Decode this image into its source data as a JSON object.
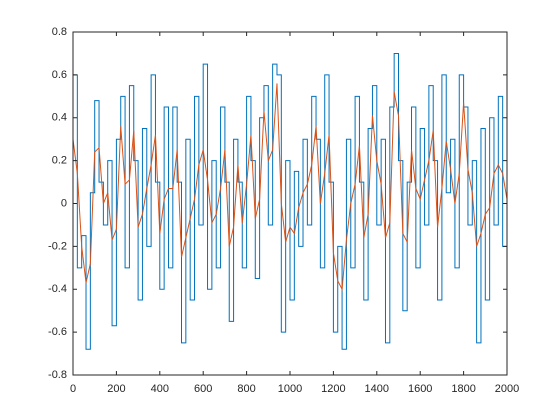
{
  "chart_data": {
    "type": "line",
    "x": [
      0,
      20,
      40,
      60,
      80,
      100,
      120,
      140,
      160,
      180,
      200,
      220,
      240,
      260,
      280,
      300,
      320,
      340,
      360,
      380,
      400,
      420,
      440,
      460,
      480,
      500,
      520,
      540,
      560,
      580,
      600,
      620,
      640,
      660,
      680,
      700,
      720,
      740,
      760,
      780,
      800,
      820,
      840,
      860,
      880,
      900,
      920,
      940,
      960,
      980,
      1000,
      1020,
      1040,
      1060,
      1080,
      1100,
      1120,
      1140,
      1160,
      1180,
      1200,
      1220,
      1240,
      1260,
      1280,
      1300,
      1320,
      1340,
      1360,
      1380,
      1400,
      1420,
      1440,
      1460,
      1480,
      1500,
      1520,
      1540,
      1560,
      1580,
      1600,
      1620,
      1640,
      1660,
      1680,
      1700,
      1720,
      1740,
      1760,
      1780,
      1800,
      1820,
      1840,
      1860,
      1880,
      1900,
      1920,
      1940,
      1960,
      1980,
      2000
    ],
    "series": [
      {
        "color": "#0072bd",
        "drawstyle": "steps-post",
        "values": [
          0.6,
          -0.3,
          -0.15,
          -0.68,
          0.05,
          0.48,
          0.1,
          -0.1,
          0.2,
          -0.57,
          0.3,
          0.5,
          -0.3,
          0.55,
          0.2,
          -0.45,
          0.35,
          -0.2,
          0.6,
          0.1,
          -0.4,
          0.45,
          -0.3,
          0.45,
          0.1,
          -0.65,
          0.3,
          -0.45,
          0.5,
          -0.1,
          0.65,
          -0.4,
          0.2,
          -0.3,
          0.45,
          0.1,
          -0.55,
          0.3,
          0.1,
          -0.3,
          0.5,
          0.2,
          -0.35,
          0.4,
          0.55,
          -0.1,
          0.65,
          0.6,
          -0.6,
          0.2,
          -0.45,
          0.15,
          -0.2,
          0.3,
          -0.1,
          0.5,
          0.3,
          -0.3,
          0.6,
          0.1,
          -0.6,
          -0.2,
          -0.68,
          0.3,
          -0.3,
          0.5,
          0.1,
          -0.45,
          0.35,
          0.55,
          -0.1,
          0.3,
          -0.65,
          0.45,
          0.7,
          0.2,
          -0.5,
          0.1,
          0.45,
          -0.3,
          0.35,
          -0.1,
          0.55,
          0.2,
          -0.45,
          0.6,
          0.05,
          0.3,
          -0.3,
          0.6,
          0.45,
          -0.1,
          0.2,
          -0.65,
          0.35,
          -0.45,
          0.4,
          -0.1,
          0.5,
          -0.2,
          0.25
        ]
      },
      {
        "color": "#d95319",
        "drawstyle": "line",
        "values": [
          0.3,
          0.14,
          -0.2,
          -0.37,
          -0.28,
          0.24,
          0.26,
          0,
          0.05,
          -0.17,
          -0.12,
          0.36,
          0.09,
          0.11,
          0.34,
          -0.11,
          -0.05,
          0.07,
          0.18,
          0.32,
          -0.14,
          0.02,
          0.07,
          0.07,
          0.25,
          -0.25,
          -0.16,
          -0.07,
          0.02,
          0.18,
          0.25,
          0.11,
          -0.09,
          -0.05,
          0.07,
          0.25,
          -0.2,
          -0.11,
          0.18,
          -0.09,
          0.09,
          0.32,
          -0.07,
          0.02,
          0.43,
          0.2,
          0.25,
          0.56,
          0,
          -0.18,
          -0.11,
          -0.14,
          -0.02,
          0.05,
          0.09,
          0.18,
          0.36,
          0,
          0.14,
          0.32,
          -0.23,
          -0.36,
          -0.4,
          -0.17,
          0,
          0.09,
          0.27,
          -0.16,
          -0.05,
          0.41,
          0.2,
          0.09,
          -0.16,
          -0.09,
          0.52,
          0.41,
          -0.14,
          -0.18,
          0.25,
          0.07,
          0.02,
          0.11,
          0.2,
          0.34,
          -0.11,
          0.07,
          0.29,
          0.16,
          0,
          0.14,
          0.47,
          0.16,
          0.05,
          -0.2,
          -0.14,
          -0.05,
          -0.02,
          0.14,
          0.18,
          0.14,
          0.02
        ]
      }
    ],
    "xlim": [
      0,
      2000
    ],
    "xticks": [
      0,
      200,
      400,
      600,
      800,
      1000,
      1200,
      1400,
      1600,
      1800,
      2000
    ],
    "ylim": [
      -0.8,
      0.8
    ],
    "yticks": [
      -0.8,
      -0.6,
      -0.4,
      -0.2,
      0,
      0.2,
      0.4,
      0.6,
      0.8
    ],
    "box": true
  }
}
